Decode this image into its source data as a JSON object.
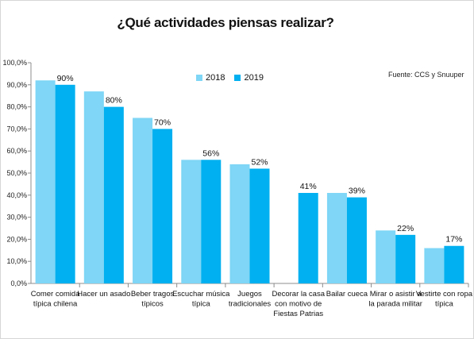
{
  "chart_data": {
    "type": "bar",
    "title": "¿Qué actividades piensas realizar?",
    "source": "Fuente: CCS y Snuuper",
    "categories": [
      [
        "Comer comida",
        "típica chilena"
      ],
      [
        "Hacer un asado"
      ],
      [
        "Beber tragos",
        "típicos"
      ],
      [
        "Escuchar música",
        "típica"
      ],
      [
        "Juegos",
        "tradicionales"
      ],
      [
        "Decorar la casa",
        "con motivo de",
        "Fiestas Patrias"
      ],
      [
        "Bailar cueca"
      ],
      [
        "Mirar o asistir a",
        "la parada militar"
      ],
      [
        "Vestirte con ropa",
        "típica"
      ]
    ],
    "series": [
      {
        "name": "2018",
        "color": "#7fd6f6",
        "values": [
          92,
          87,
          75,
          56,
          54,
          null,
          41,
          24,
          16
        ]
      },
      {
        "name": "2019",
        "color": "#00b0f0",
        "values": [
          90,
          80,
          70,
          56,
          52,
          41,
          39,
          22,
          17
        ]
      }
    ],
    "data_labels": [
      "90%",
      "80%",
      "70%",
      "56%",
      "52%",
      "41%",
      "39%",
      "22%",
      "17%"
    ],
    "ylim": [
      0,
      100
    ],
    "yticks": [
      "0,0%",
      "10,0%",
      "20,0%",
      "30,0%",
      "40,0%",
      "50,0%",
      "60,0%",
      "70,0%",
      "80,0%",
      "90,0%",
      "100,0%"
    ],
    "grid": false,
    "legend_position": "top-center"
  }
}
